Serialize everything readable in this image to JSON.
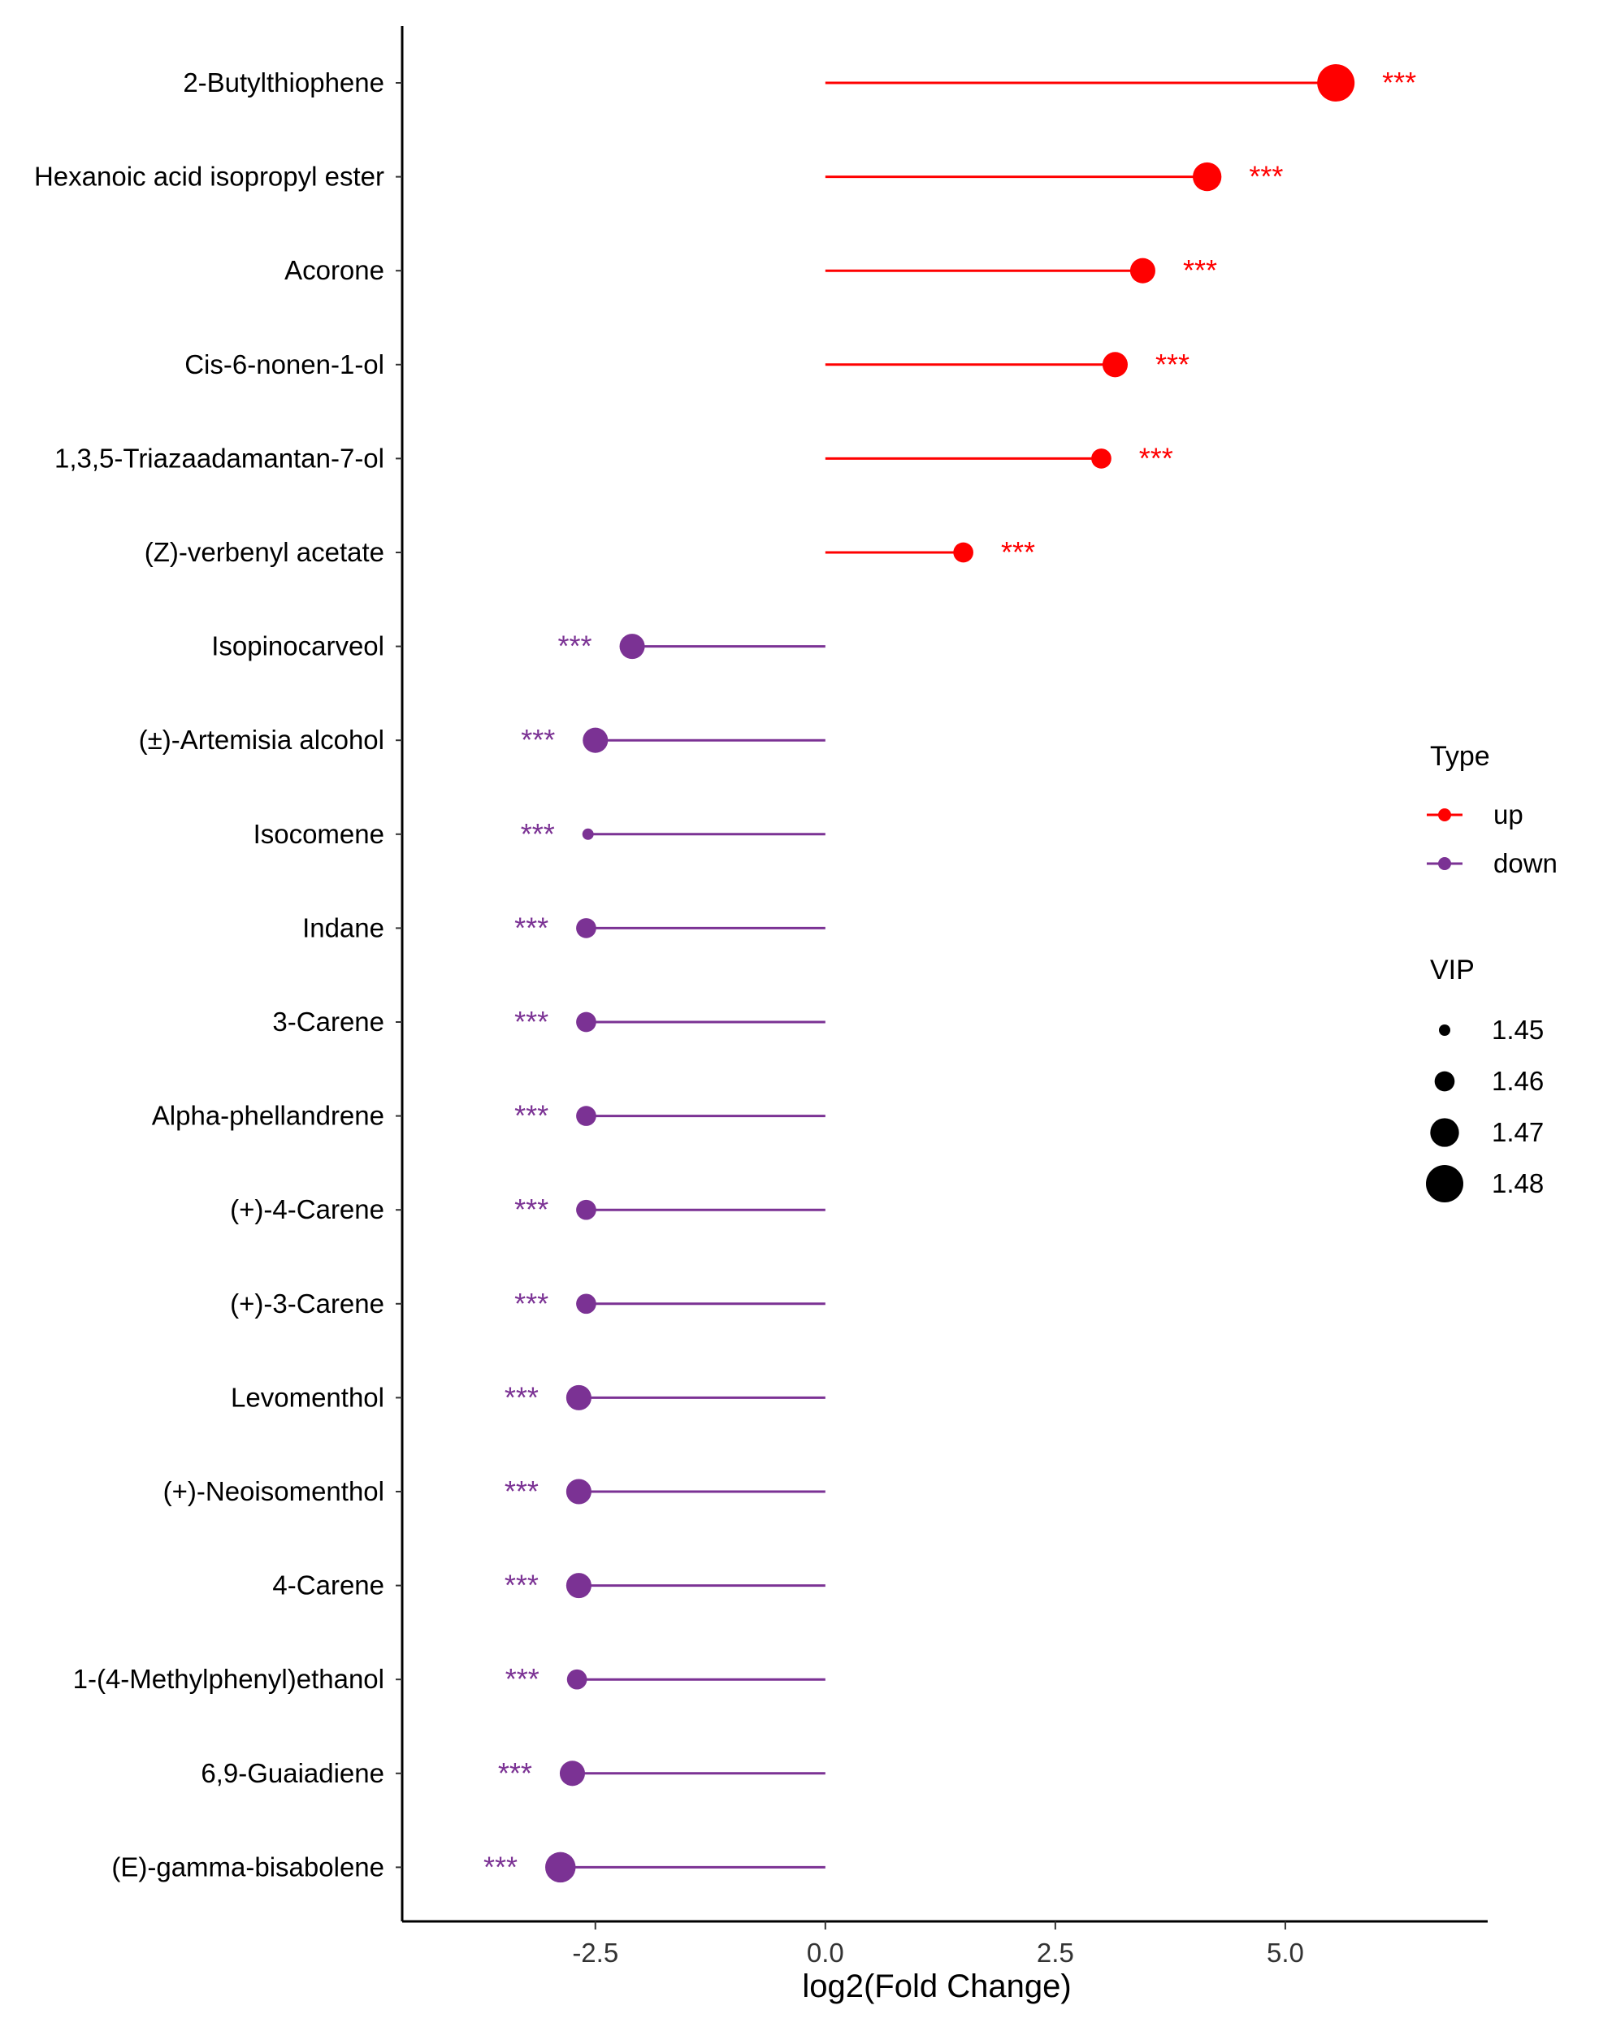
{
  "chart_data": {
    "type": "lollipop",
    "title": "",
    "xlabel": "log2(Fold Change)",
    "ylabel": "",
    "xlim": [
      -4.6,
      7.2
    ],
    "xticks": [
      -2.5,
      0.0,
      2.5,
      5.0
    ],
    "xtick_labels": [
      "-2.5",
      "0.0",
      "2.5",
      "5.0"
    ],
    "colors": {
      "up": "#ff0000",
      "down": "#7b3294"
    },
    "categories": [
      "2-Butylthiophene",
      "Hexanoic acid isopropyl ester",
      "Acorone",
      "Cis-6-nonen-1-ol",
      "1,3,5-Triazaadamantan-7-ol",
      "(Z)-verbenyl acetate",
      "Isopinocarveol",
      "(±)-Artemisia alcohol",
      "Isocomene",
      "Indane",
      "3-Carene",
      "Alpha-phellandrene",
      "(+)-4-Carene",
      "(+)-3-Carene",
      "Levomenthol",
      "(+)-Neoisomenthol",
      "4-Carene",
      "1-(4-Methylphenyl)ethanol",
      "6,9-Guaiadiene",
      "(E)-gamma-bisabolene"
    ],
    "values": [
      5.55,
      4.15,
      3.45,
      3.15,
      3.0,
      1.5,
      -2.1,
      -2.5,
      -2.58,
      -2.6,
      -2.6,
      -2.6,
      -2.6,
      -2.6,
      -2.68,
      -2.68,
      -2.68,
      -2.7,
      -2.75,
      -2.88
    ],
    "types": [
      "up",
      "up",
      "up",
      "up",
      "up",
      "up",
      "down",
      "down",
      "down",
      "down",
      "down",
      "down",
      "down",
      "down",
      "down",
      "down",
      "down",
      "down",
      "down",
      "down"
    ],
    "vip": [
      1.48,
      1.47,
      1.466,
      1.466,
      1.46,
      1.46,
      1.466,
      1.466,
      1.45,
      1.46,
      1.46,
      1.46,
      1.46,
      1.46,
      1.466,
      1.466,
      1.466,
      1.46,
      1.466,
      1.472
    ],
    "significance": [
      "***",
      "***",
      "***",
      "***",
      "***",
      "***",
      "***",
      "***",
      "***",
      "***",
      "***",
      "***",
      "***",
      "***",
      "***",
      "***",
      "***",
      "***",
      "***",
      "***"
    ],
    "legend_type": {
      "title": "Type",
      "entries": [
        {
          "label": "up",
          "key": "up"
        },
        {
          "label": "down",
          "key": "down"
        }
      ]
    },
    "legend_vip": {
      "title": "VIP",
      "values": [
        1.45,
        1.46,
        1.47,
        1.48
      ],
      "labels": [
        "1.45",
        "1.46",
        "1.47",
        "1.48"
      ]
    },
    "legend_position": "right"
  }
}
